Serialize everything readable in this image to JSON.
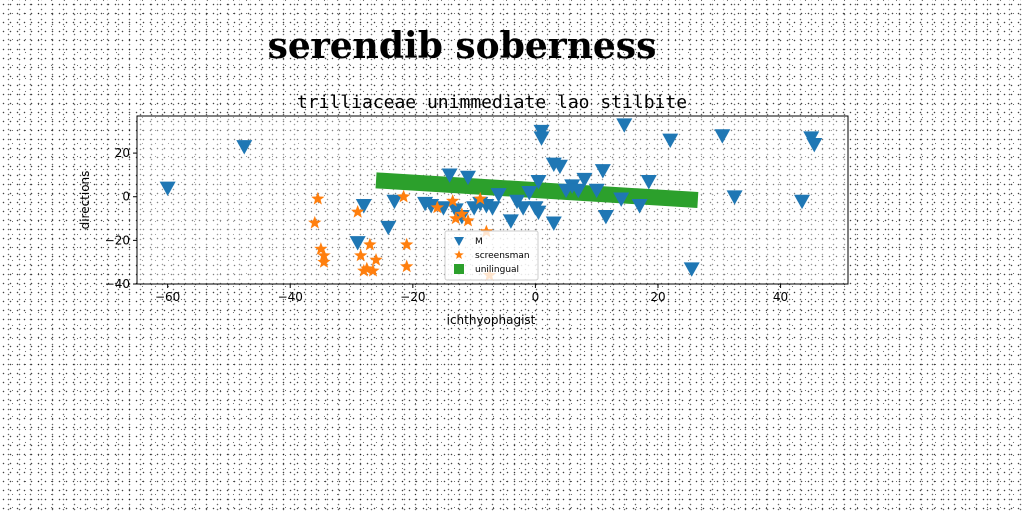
{
  "figure": {
    "title": "serendib soberness"
  },
  "chart_data": {
    "type": "scatter",
    "title": "trilliaceae unimmediate lao stilbite",
    "xlabel": "ichthyophagist",
    "ylabel": "directions",
    "xlim": [
      -65,
      51
    ],
    "ylim": [
      -40,
      37
    ],
    "xticks": [
      -60,
      -40,
      -20,
      0,
      20,
      40
    ],
    "yticks": [
      -40,
      -20,
      0,
      20
    ],
    "grid": false,
    "legend_position": "lower-center",
    "series": [
      {
        "name": "M",
        "type": "scatter",
        "marker": "triangle-down",
        "color": "#1f77b4",
        "points": [
          [
            -60,
            4
          ],
          [
            -47.5,
            23
          ],
          [
            -29,
            -21
          ],
          [
            -28,
            -4
          ],
          [
            -24,
            -14
          ],
          [
            -23,
            -2
          ],
          [
            -18,
            -3
          ],
          [
            -17,
            -4
          ],
          [
            -15,
            -5
          ],
          [
            -14,
            10
          ],
          [
            -13,
            -6
          ],
          [
            -12,
            -9
          ],
          [
            -11,
            9
          ],
          [
            -10,
            -5
          ],
          [
            -9,
            -3
          ],
          [
            -8,
            -4
          ],
          [
            -7,
            -5
          ],
          [
            -6,
            1
          ],
          [
            -4,
            -11
          ],
          [
            -3,
            -2
          ],
          [
            -2,
            -5
          ],
          [
            -1,
            2
          ],
          [
            0,
            -5
          ],
          [
            0.5,
            -7
          ],
          [
            0.5,
            7
          ],
          [
            1,
            30
          ],
          [
            1,
            27
          ],
          [
            3,
            -12
          ],
          [
            3,
            15
          ],
          [
            4,
            14
          ],
          [
            5,
            3
          ],
          [
            6,
            5
          ],
          [
            7,
            3
          ],
          [
            8,
            8
          ],
          [
            10,
            3
          ],
          [
            11,
            12
          ],
          [
            11.5,
            -9
          ],
          [
            14,
            -1
          ],
          [
            14.5,
            33
          ],
          [
            17,
            -4
          ],
          [
            18.5,
            7
          ],
          [
            22,
            26
          ],
          [
            25.5,
            -33
          ],
          [
            30.5,
            28
          ],
          [
            32.5,
            0
          ],
          [
            43.5,
            -2
          ],
          [
            45,
            27
          ],
          [
            45.5,
            24
          ]
        ]
      },
      {
        "name": "screensman",
        "type": "scatter",
        "marker": "star",
        "color": "#ff7f0e",
        "points": [
          [
            -36,
            -12
          ],
          [
            -35.5,
            -1
          ],
          [
            -35,
            -24
          ],
          [
            -34.5,
            -27
          ],
          [
            -34.5,
            -30
          ],
          [
            -29,
            -7
          ],
          [
            -28.5,
            -27
          ],
          [
            -28,
            -34
          ],
          [
            -27.5,
            -33
          ],
          [
            -27,
            -22
          ],
          [
            -26.5,
            -34
          ],
          [
            -26,
            -29
          ],
          [
            -21,
            -22
          ],
          [
            -21,
            -32
          ],
          [
            -21.5,
            0
          ],
          [
            -16,
            -5
          ],
          [
            -13.5,
            -2
          ],
          [
            -13,
            -10
          ],
          [
            -12,
            -8
          ],
          [
            -11,
            -11
          ],
          [
            -9,
            -1
          ],
          [
            -8,
            -16
          ],
          [
            -7.5,
            -36
          ]
        ]
      },
      {
        "name": "unilingual",
        "type": "line",
        "color": "#2ca02c",
        "x": [
          -26,
          26.5
        ],
        "y": [
          7.5,
          -1.5
        ]
      }
    ]
  }
}
